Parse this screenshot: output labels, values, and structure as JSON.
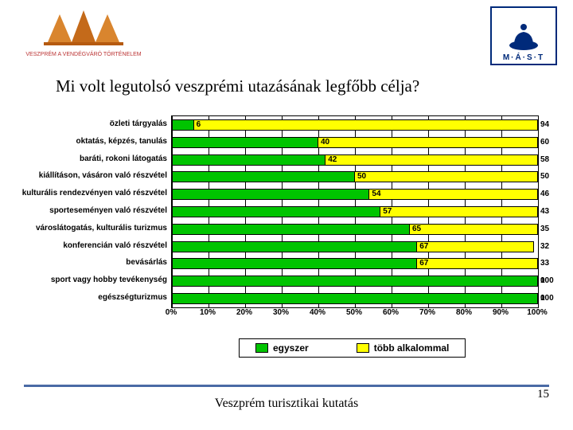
{
  "header": {
    "logo_left_alt": "Veszprém logo",
    "logo_right_text": "M·Á·S·T"
  },
  "title": "Mi volt legutolsó veszprémi utazásának legfőbb célja?",
  "chart": {
    "type": "stacked-bar-horizontal",
    "background_color": "#ffffff",
    "series_colors": [
      "#00c400",
      "#ffff00"
    ],
    "border_color": "#000000",
    "label_fontsize": 10,
    "categories": [
      "özleti tárgyalás",
      "oktatás, képzés, tanulás",
      "baráti, rokoni látogatás",
      "kiállításon, vásáron való részvétel",
      "kulturális rendezvényen való részvétel",
      "sporteseményen való részvétel",
      "városlátogatás, kulturális turizmus",
      "konferencián való részvétel",
      "bevásárlás",
      "sport vagy hobby tevékenység",
      "egészségturizmus"
    ],
    "series1": [
      6,
      40,
      42,
      50,
      54,
      57,
      65,
      67,
      67,
      100,
      100
    ],
    "series2": [
      94,
      60,
      58,
      50,
      46,
      43,
      35,
      32,
      33,
      0,
      0
    ],
    "xticks": [
      "0%",
      "10%",
      "20%",
      "30%",
      "40%",
      "50%",
      "60%",
      "70%",
      "80%",
      "90%",
      "100%"
    ],
    "xlim": [
      0,
      100
    ],
    "legend": {
      "s1": "egyszer",
      "s2": "több alkalommal"
    }
  },
  "footer": {
    "text": "Veszprém turisztikai kutatás",
    "page": "15",
    "line_color": "#4a6aa5"
  }
}
